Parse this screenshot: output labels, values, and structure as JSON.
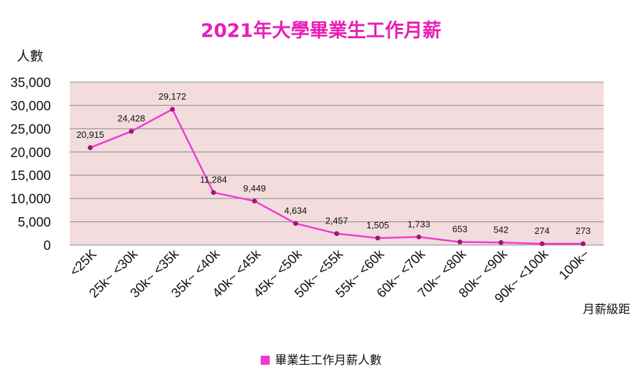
{
  "chart_data": {
    "type": "line",
    "title": "2021年大學畢業生工作月薪",
    "ylabel": "人數",
    "xlabel": "月薪級距",
    "ylim": [
      0,
      35000
    ],
    "yticks": [
      0,
      5000,
      10000,
      15000,
      20000,
      25000,
      30000,
      35000
    ],
    "ytick_labels": [
      "0",
      "5,000",
      "10,000",
      "15,000",
      "20,000",
      "25,000",
      "30,000",
      "35,000"
    ],
    "categories": [
      "<25K",
      "25k~ <30k",
      "30k~ <35k",
      "35k~ <40k",
      "40k~ <45k",
      "45k~ <50k",
      "50k~ <55k",
      "55k~ <60k",
      "60k~ <70k",
      "70k~ <80k",
      "80k~ <90k",
      "90k~ <100k",
      "100k~"
    ],
    "series": [
      {
        "name": "畢業生工作月薪人數",
        "values": [
          20915,
          24428,
          29172,
          11284,
          9449,
          4634,
          2457,
          1505,
          1733,
          653,
          542,
          274,
          273
        ],
        "data_labels": [
          "20,915",
          "24,428",
          "29,172",
          "11,284",
          "9,449",
          "4,634",
          "2,457",
          "1,505",
          "1,733",
          "653",
          "542",
          "274",
          "273"
        ]
      }
    ],
    "grid": true,
    "legend_position": "bottom",
    "colors": {
      "line": "#f03ad0",
      "marker": "#a0147e",
      "plot_bg": "#f2dcdd",
      "grid": "#888888",
      "title": "#e81fb6"
    }
  }
}
